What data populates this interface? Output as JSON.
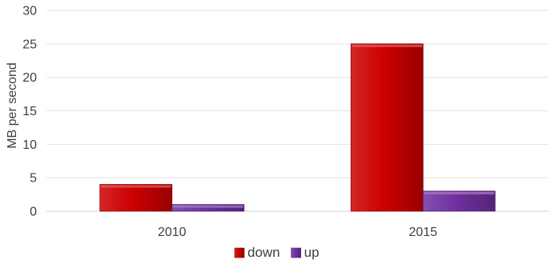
{
  "chart_data": {
    "type": "bar",
    "categories": [
      "2010",
      "2015"
    ],
    "series": [
      {
        "name": "down",
        "values": [
          4,
          25
        ],
        "color": "#cc0000"
      },
      {
        "name": "up",
        "values": [
          1,
          3
        ],
        "color": "#7030a0"
      }
    ],
    "xlabel": "",
    "ylabel": "MB per second",
    "ylim": [
      0,
      30
    ],
    "yticks": [
      0,
      5,
      10,
      15,
      20,
      25,
      30
    ],
    "grid": true,
    "legend_position": "bottom",
    "style": "3d-bevel"
  }
}
